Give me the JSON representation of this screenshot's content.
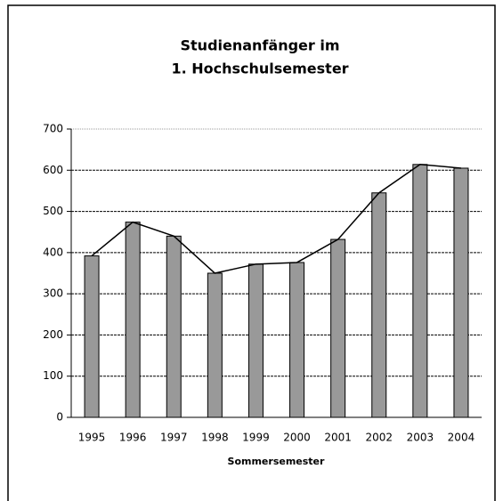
{
  "chart_data": {
    "type": "bar_line",
    "title": [
      "Studienanfänger im",
      "1. Hochschulsemester"
    ],
    "x_label": "Sommersemester",
    "categories": [
      "1995",
      "1996",
      "1997",
      "1998",
      "1999",
      "2000",
      "2001",
      "2002",
      "2003",
      "2004"
    ],
    "values": [
      392,
      474,
      440,
      350,
      372,
      376,
      432,
      545,
      614,
      605
    ],
    "color": "#999999",
    "line_color": "#000000",
    "ylim": [
      0,
      700
    ],
    "yticks": [
      0,
      100,
      200,
      300,
      400,
      500,
      600,
      700
    ],
    "grid": true
  }
}
